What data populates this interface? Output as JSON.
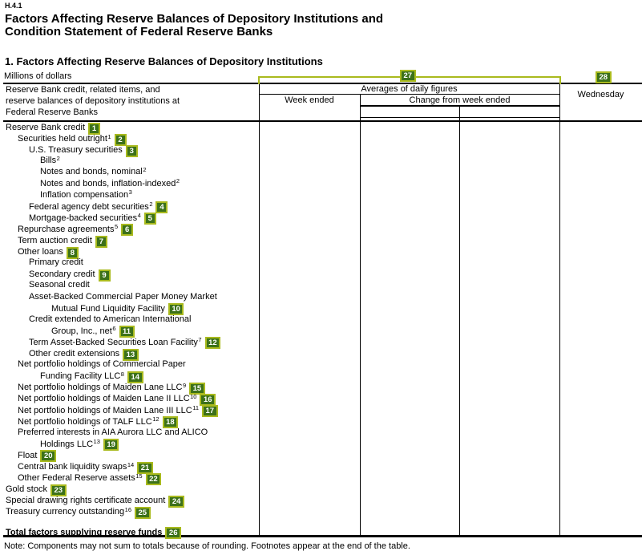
{
  "page": {
    "report_id": "H.4.1",
    "title_line1": "Factors Affecting Reserve Balances of Depository Institutions and",
    "title_line2": "Condition Statement of Federal Reserve Banks",
    "section_heading": "1. Factors Affecting Reserve Balances of Depository Institutions",
    "units_label": "Millions of dollars",
    "note": "Note: Components may not sum to totals because of rounding. Footnotes appear at the end of the table."
  },
  "table": {
    "stub_header_line1": "Reserve Bank credit, related items, and",
    "stub_header_line2": "reserve balances of depository institutions at",
    "stub_header_line3": "Federal Reserve Banks",
    "column_group_header": "Averages of daily figures",
    "col_week_ended": "Week ended",
    "col_change_from_week_ended": "Change from week ended",
    "col_wednesday": "Wednesday",
    "rows": [
      {
        "label": "Reserve Bank credit",
        "sup": "",
        "marker": "1",
        "indent": 0
      },
      {
        "label": "Securities held outright",
        "sup": "1",
        "marker": "2",
        "indent": 1
      },
      {
        "label": "U.S. Treasury securities",
        "sup": "",
        "marker": "3",
        "indent": 2
      },
      {
        "label": "Bills",
        "sup": "2",
        "marker": "",
        "indent": 3
      },
      {
        "label": "Notes and bonds, nominal",
        "sup": "2",
        "marker": "",
        "indent": 3
      },
      {
        "label": "Notes and bonds, inflation-indexed",
        "sup": "2",
        "marker": "",
        "indent": 3
      },
      {
        "label": "Inflation compensation",
        "sup": "3",
        "marker": "",
        "indent": 3
      },
      {
        "label": "Federal agency debt securities",
        "sup": "2",
        "marker": "4",
        "indent": 2
      },
      {
        "label": "Mortgage-backed securities",
        "sup": "4",
        "marker": "5",
        "indent": 2
      },
      {
        "label": "Repurchase agreements",
        "sup": "5",
        "marker": "6",
        "indent": 1
      },
      {
        "label": "Term auction credit",
        "sup": "",
        "marker": "7",
        "indent": 1
      },
      {
        "label": "Other loans",
        "sup": "",
        "marker": "8",
        "indent": 1
      },
      {
        "label": "Primary credit",
        "sup": "",
        "marker": "",
        "indent": 2
      },
      {
        "label": "Secondary credit",
        "sup": "",
        "marker": "9",
        "indent": 2
      },
      {
        "label": "Seasonal credit",
        "sup": "",
        "marker": "",
        "indent": 2
      },
      {
        "label": "Asset-Backed Commercial Paper Money Market",
        "sup": "",
        "marker": "",
        "indent": 2
      },
      {
        "label": "Mutual Fund Liquidity Facility",
        "sup": "",
        "marker": "10",
        "indent": 4
      },
      {
        "label": "Credit extended to American International",
        "sup": "",
        "marker": "",
        "indent": 2
      },
      {
        "label": "Group, Inc., net",
        "sup": "6",
        "marker": "11",
        "indent": 4
      },
      {
        "label": "Term Asset-Backed Securities Loan Facility",
        "sup": "7",
        "marker": "12",
        "indent": 2
      },
      {
        "label": "Other credit extensions",
        "sup": "",
        "marker": "13",
        "indent": 2
      },
      {
        "label": "Net portfolio holdings of Commercial Paper",
        "sup": "",
        "marker": "",
        "indent": 1
      },
      {
        "label": "Funding Facility LLC",
        "sup": "8",
        "marker": "14",
        "indent": 3
      },
      {
        "label": "Net portfolio holdings of Maiden Lane LLC",
        "sup": "9",
        "marker": "15",
        "indent": 1
      },
      {
        "label": "Net portfolio holdings of Maiden Lane II LLC",
        "sup": "10",
        "marker": "16",
        "indent": 1
      },
      {
        "label": "Net portfolio holdings of Maiden Lane III LLC",
        "sup": "11",
        "marker": "17",
        "indent": 1
      },
      {
        "label": "Net portfolio holdings of TALF LLC",
        "sup": "12",
        "marker": "18",
        "indent": 1
      },
      {
        "label": "Preferred interests in AIA Aurora LLC and ALICO",
        "sup": "",
        "marker": "",
        "indent": 1
      },
      {
        "label": "Holdings LLC",
        "sup": "13",
        "marker": "19",
        "indent": 3
      },
      {
        "label": "Float",
        "sup": "",
        "marker": "20",
        "indent": 1
      },
      {
        "label": "Central bank liquidity swaps",
        "sup": "14",
        "marker": "21",
        "indent": 1
      },
      {
        "label": "Other Federal Reserve assets",
        "sup": "15",
        "marker": "22",
        "indent": 1
      },
      {
        "label": "Gold stock",
        "sup": "",
        "marker": "23",
        "indent": 0
      },
      {
        "label": "Special drawing rights certificate account",
        "sup": "",
        "marker": "24",
        "indent": 0
      },
      {
        "label": "Treasury currency outstanding",
        "sup": "16",
        "marker": "25",
        "indent": 0
      },
      {
        "label": "Total factors supplying reserve funds",
        "sup": "",
        "marker": "26",
        "indent": 0,
        "bold": true,
        "spacer": true
      }
    ]
  },
  "annotations": {
    "marker_fill_color": "#3c7119",
    "marker_border_color": "#a9ba1e",
    "group_bracket_marker": "27",
    "wednesday_marker": "28"
  }
}
